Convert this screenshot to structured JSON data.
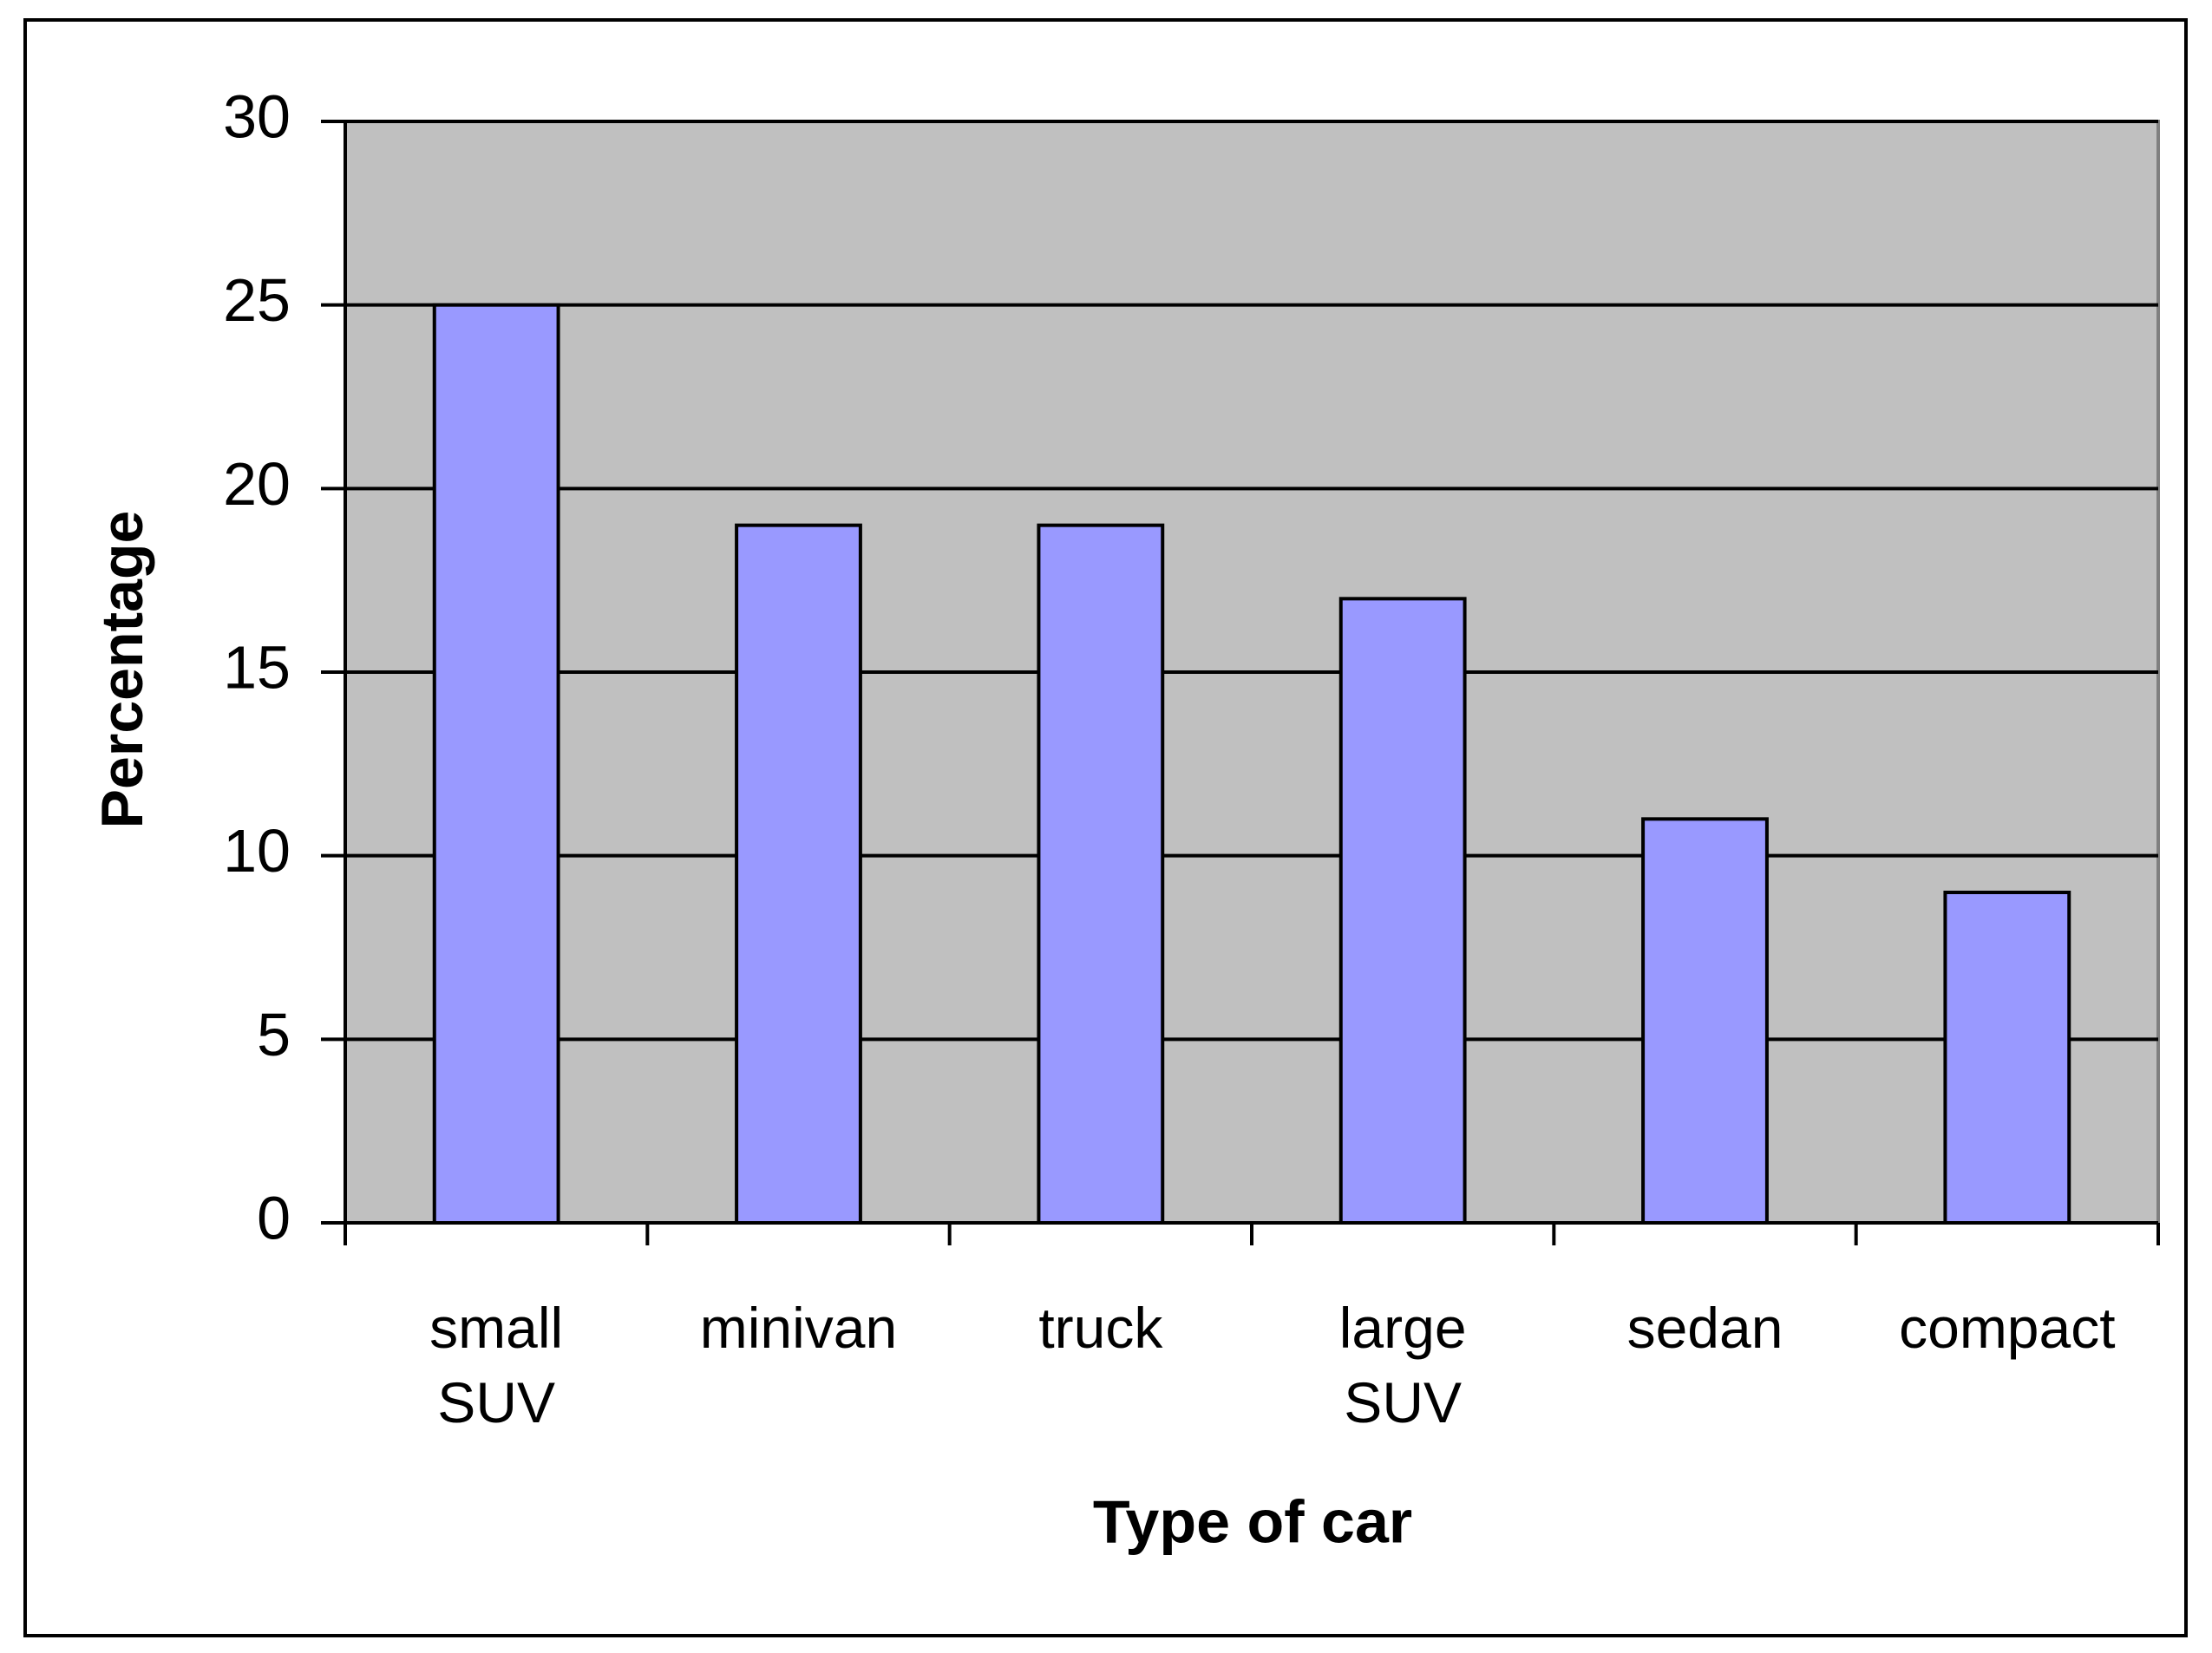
{
  "chart_data": {
    "type": "bar",
    "xlabel": "Type of car",
    "ylabel": "Percentage",
    "categories": [
      "small SUV",
      "minivan",
      "truck",
      "large SUV",
      "sedan",
      "compact"
    ],
    "values": [
      25,
      19,
      19,
      17,
      11,
      9
    ],
    "color": "#9999ff",
    "ylim": [
      0,
      30
    ],
    "yticks": [
      0,
      5,
      10,
      15,
      20,
      25,
      30
    ],
    "grid": true
  }
}
